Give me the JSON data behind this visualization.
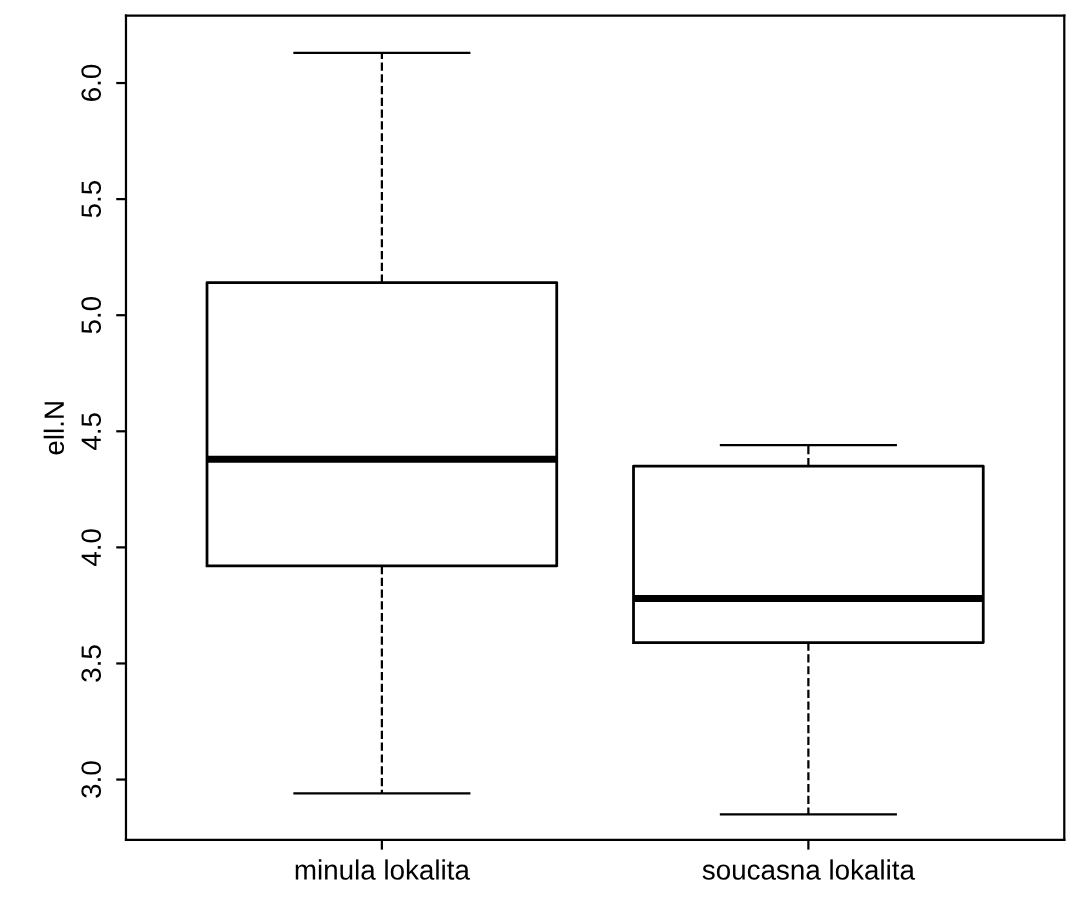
{
  "chart_data": {
    "type": "box",
    "ylabel": "ell.N",
    "categories": [
      "minula lokalita",
      "soucasna lokalita"
    ],
    "boxes": [
      {
        "low": 2.94,
        "q1": 3.92,
        "median": 4.38,
        "q3": 5.14,
        "high": 6.13
      },
      {
        "low": 2.85,
        "q1": 3.59,
        "median": 3.78,
        "q3": 4.35,
        "high": 4.44
      }
    ],
    "ylim": [
      2.74,
      6.29
    ],
    "yticks": [
      {
        "value": 3.0,
        "label": "3.0"
      },
      {
        "value": 3.5,
        "label": "3.5"
      },
      {
        "value": 4.0,
        "label": "4.0"
      },
      {
        "value": 4.5,
        "label": "4.5"
      },
      {
        "value": 5.0,
        "label": "5.0"
      },
      {
        "value": 5.5,
        "label": "5.5"
      },
      {
        "value": 6.0,
        "label": "6.0"
      }
    ],
    "grid": false,
    "line_style": "dashed"
  }
}
